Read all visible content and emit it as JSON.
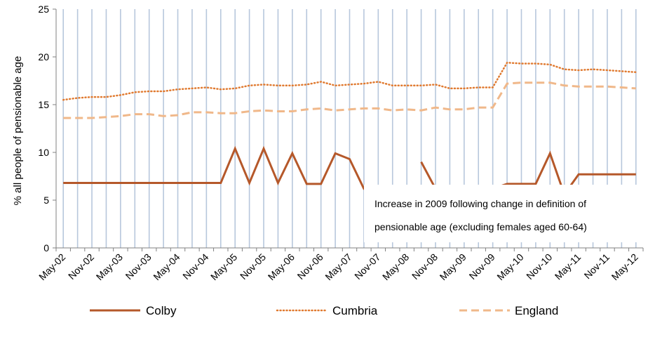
{
  "chart_data": {
    "type": "line",
    "ylabel": "% all people of pensionable age",
    "ylim": [
      0,
      25
    ],
    "yticks": [
      0,
      5,
      10,
      15,
      20,
      25
    ],
    "grid": "vertical",
    "legend": "bottom",
    "x": [
      "May-02",
      "Aug-02",
      "Nov-02",
      "Feb-03",
      "May-03",
      "Aug-03",
      "Nov-03",
      "Feb-04",
      "May-04",
      "Aug-04",
      "Nov-04",
      "Feb-05",
      "May-05",
      "Aug-05",
      "Nov-05",
      "Feb-06",
      "May-06",
      "Aug-06",
      "Nov-06",
      "Feb-07",
      "May-07",
      "Aug-07",
      "Nov-07",
      "Feb-08",
      "May-08",
      "Aug-08",
      "Nov-08",
      "Feb-09",
      "May-09",
      "Aug-09",
      "Nov-09",
      "Feb-10",
      "May-10",
      "Aug-10",
      "Nov-10",
      "Feb-11",
      "May-11",
      "Aug-11",
      "Nov-11",
      "Feb-12",
      "May-12"
    ],
    "xtick_labels": [
      "May-02",
      "Nov-02",
      "May-03",
      "Nov-03",
      "May-04",
      "Nov-04",
      "May-05",
      "Nov-05",
      "May-06",
      "Nov-06",
      "May-07",
      "Nov-07",
      "May-08",
      "Nov-08",
      "May-09",
      "Nov-09",
      "May-10",
      "Nov-10",
      "May-11",
      "Nov-11",
      "May-12"
    ],
    "series": [
      {
        "name": "Colby",
        "color": "#b5582a",
        "style": "solid",
        "values": [
          6.8,
          6.8,
          6.8,
          6.8,
          6.8,
          6.8,
          6.8,
          6.8,
          6.8,
          6.8,
          6.8,
          6.8,
          10.4,
          6.8,
          10.4,
          6.8,
          9.9,
          6.7,
          6.7,
          9.9,
          9.3,
          6.2,
          6.2,
          null,
          null,
          9.0,
          6.2,
          null,
          null,
          null,
          6.2,
          6.7,
          6.7,
          6.7,
          9.9,
          5.6,
          7.7,
          7.7,
          7.7,
          7.7,
          7.7
        ]
      },
      {
        "name": "Cumbria",
        "color": "#e07a30",
        "style": "dotted",
        "values": [
          15.5,
          15.7,
          15.8,
          15.8,
          16.0,
          16.3,
          16.4,
          16.4,
          16.6,
          16.7,
          16.8,
          16.6,
          16.7,
          17.0,
          17.1,
          17.0,
          17.0,
          17.1,
          17.4,
          17.0,
          17.1,
          17.2,
          17.4,
          17.0,
          17.0,
          17.0,
          17.1,
          16.7,
          16.7,
          16.8,
          16.8,
          19.4,
          19.3,
          19.3,
          19.2,
          18.7,
          18.6,
          18.7,
          18.6,
          18.5,
          18.4
        ]
      },
      {
        "name": "England",
        "color": "#f0b88a",
        "style": "dashed",
        "values": [
          13.6,
          13.6,
          13.6,
          13.7,
          13.8,
          14.0,
          14.0,
          13.8,
          13.9,
          14.2,
          14.2,
          14.1,
          14.1,
          14.3,
          14.4,
          14.3,
          14.3,
          14.5,
          14.6,
          14.4,
          14.5,
          14.6,
          14.6,
          14.4,
          14.5,
          14.4,
          14.7,
          14.5,
          14.5,
          14.7,
          14.7,
          17.2,
          17.3,
          17.3,
          17.3,
          17.0,
          16.9,
          16.9,
          16.9,
          16.8,
          16.7
        ]
      }
    ],
    "annotation": {
      "lines": [
        "Increase in 2009 following change in definition of",
        "pensionable age (excluding females aged 60-64)"
      ]
    }
  }
}
